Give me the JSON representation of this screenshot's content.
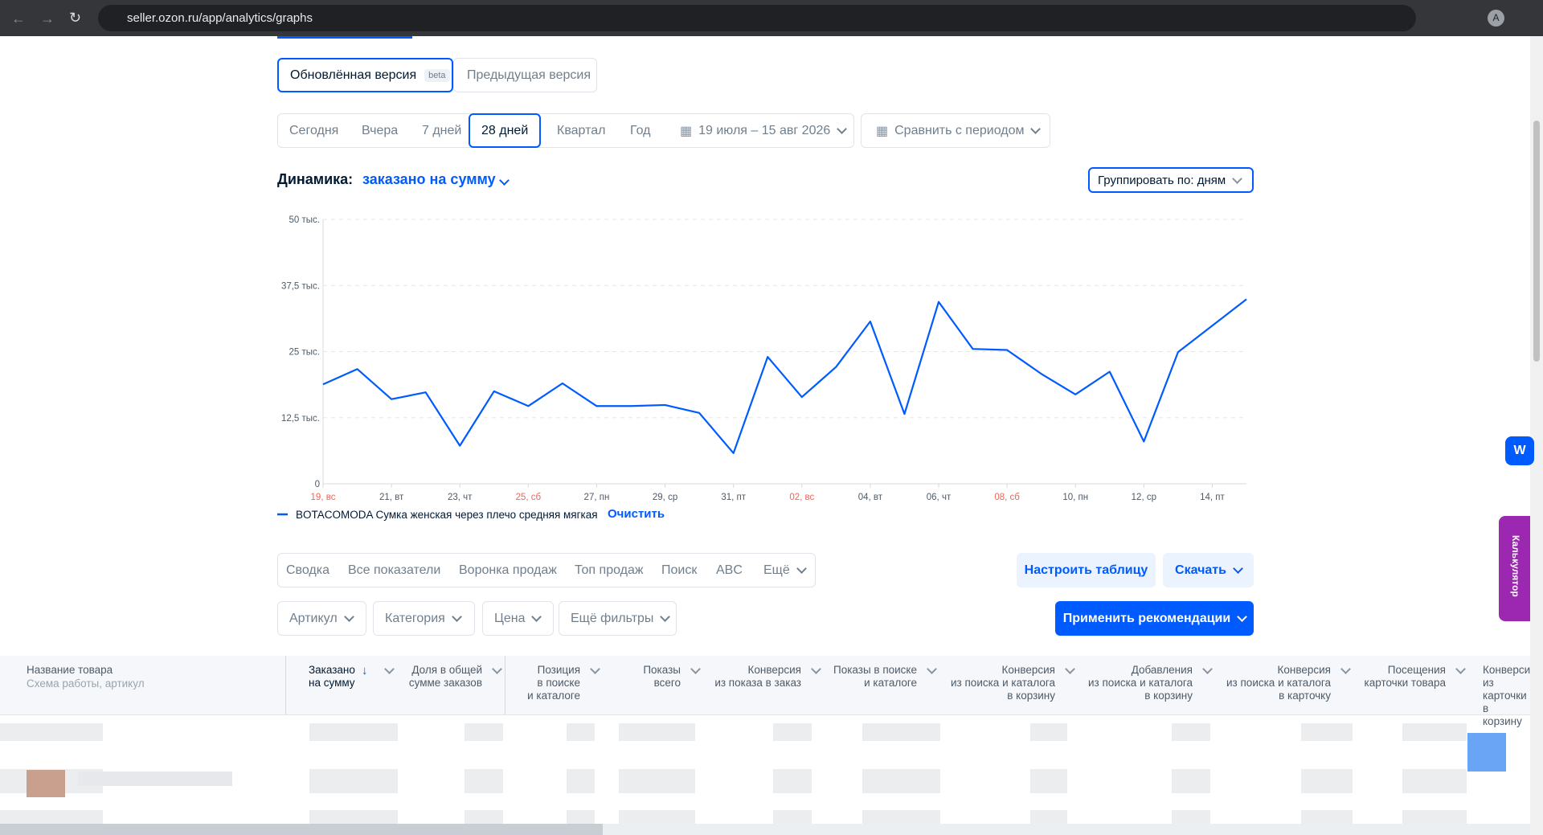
{
  "browser": {
    "url": "seller.ozon.ru/app/analytics/graphs",
    "avatar": "A"
  },
  "version_toggle": {
    "current": "Обновлённая версия",
    "badge": "beta",
    "previous": "Предыдущая версия"
  },
  "periods": [
    "Сегодня",
    "Вчера",
    "7 дней",
    "28 дней",
    "Квартал",
    "Год"
  ],
  "date_range": "19 июля – 15 авг 2026",
  "compare": "Сравнить с периодом",
  "dynamics": {
    "label": "Динамика:",
    "metric": "заказано на сумму"
  },
  "group_by": "Группировать по: дням",
  "chart_data": {
    "type": "line",
    "categories": [
      "19, вс",
      null,
      "21, вт",
      null,
      "23, чт",
      null,
      "25, сб",
      null,
      "27, пн",
      null,
      "29, ср",
      null,
      "31, пт",
      null,
      "02, вс",
      null,
      "04, вт",
      null,
      "06, чт",
      null,
      "08, сб",
      null,
      "10, пн",
      null,
      "12, ср",
      null,
      "14, пт",
      null
    ],
    "weekend_categories": [
      0,
      6,
      14,
      20
    ],
    "weekend_color": "#f0645a",
    "series": [
      {
        "name": "BOTACOMODA Сумка женская через плечо средняя мягкая",
        "color": "#005bff",
        "values": [
          18800,
          21700,
          16000,
          17300,
          7200,
          17500,
          14700,
          19000,
          14700,
          14700,
          14900,
          13400,
          5800,
          24000,
          16400,
          22100,
          30700,
          13200,
          34400,
          25500,
          25300,
          20800,
          16900,
          21200,
          8000,
          24900,
          29900,
          34900
        ]
      }
    ],
    "ylim": [
      0,
      50000
    ],
    "yticks": [
      {
        "value": 0,
        "label": "0"
      },
      {
        "value": 12500,
        "label": "12,5 тыс."
      },
      {
        "value": 25000,
        "label": "25 тыс."
      },
      {
        "value": 37500,
        "label": "37,5 тыс."
      },
      {
        "value": 50000,
        "label": "50 тыс."
      }
    ],
    "grid": true,
    "clear": "Очистить"
  },
  "tabs": [
    "Сводка",
    "Все показатели",
    "Воронка продаж",
    "Топ продаж",
    "Поиск",
    "ABC",
    "Ещё"
  ],
  "actions": {
    "configure": "Настроить таблицу",
    "download": "Скачать",
    "apply": "Применить рекомендации"
  },
  "filters": [
    "Артикул",
    "Категория",
    "Цена",
    "Ещё фильтры"
  ],
  "table": {
    "name": "Название товара",
    "name_sub": "Схема работы, артикул",
    "headers": [
      "Заказано\nна сумму",
      "Доля в общей\nсумме заказов",
      "Позиция\nв поиске\nи каталоге",
      "Показы\nвсего",
      "Конверсия\nиз показа в заказ",
      "Показы в поиске\nи каталоге",
      "Конверсия\nиз поиска и каталога\nв корзину",
      "Добавления\nиз поиска и каталога\nв корзину",
      "Конверсия\nиз поиска и каталога\nв карточку",
      "Посещения\nкарточки товара",
      "Конверсия\nиз карточки\nв корзину"
    ]
  },
  "side_widget": "Калькулятор"
}
